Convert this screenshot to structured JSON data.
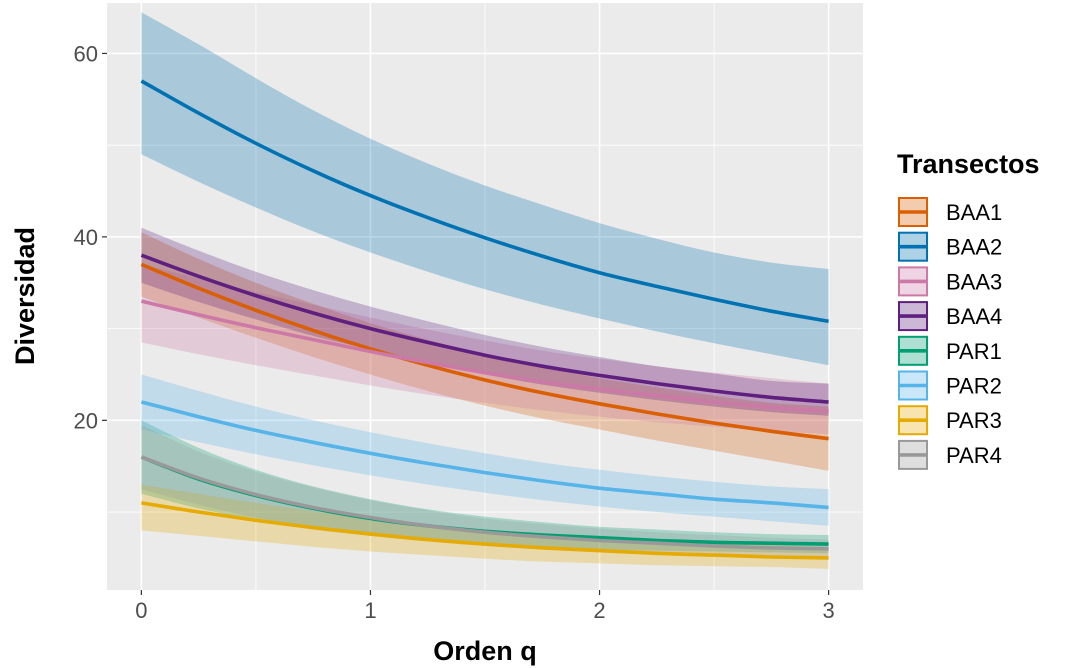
{
  "chart_data": {
    "type": "line",
    "xlabel": "Orden q",
    "ylabel": "Diversidad",
    "xlim": [
      -0.15,
      3.15
    ],
    "ylim": [
      1.5,
      65.5
    ],
    "xticks": [
      0,
      1,
      2,
      3
    ],
    "yticks": [
      20,
      40,
      60
    ],
    "x": [
      0,
      0.25,
      0.5,
      0.75,
      1,
      1.25,
      1.5,
      1.75,
      2,
      2.25,
      2.5,
      2.75,
      3
    ],
    "grid": true,
    "legend_position": "right",
    "legend_title": "Transectos",
    "series": [
      {
        "name": "BAA1",
        "color": "#D95F02",
        "line": [
          37,
          34.4,
          32,
          29.8,
          27.8,
          26,
          24.4,
          23,
          21.8,
          20.7,
          19.7,
          18.8,
          18
        ],
        "lower": [
          33.5,
          31.2,
          29,
          26.9,
          25,
          23.2,
          21.6,
          20.2,
          19,
          17.8,
          16.7,
          15.6,
          14.5
        ],
        "upper": [
          40.5,
          37.6,
          35,
          32.7,
          30.6,
          28.8,
          27.2,
          25.8,
          24.6,
          23.6,
          22.7,
          21.9,
          21.5
        ]
      },
      {
        "name": "BAA2",
        "color": "#0072B2",
        "line": [
          57,
          53.5,
          50.2,
          47.2,
          44.5,
          42.1,
          39.9,
          37.9,
          36.1,
          34.6,
          33.2,
          31.9,
          30.8
        ],
        "lower": [
          49,
          46,
          43.2,
          40.6,
          38.3,
          36.2,
          34.3,
          32.6,
          31.1,
          29.7,
          28.4,
          27.2,
          26
        ],
        "upper": [
          64.5,
          61,
          57.3,
          53.8,
          50.7,
          48,
          45.6,
          43.5,
          41.5,
          39.8,
          38.3,
          37.2,
          36.5
        ]
      },
      {
        "name": "BAA3",
        "color": "#CC79A7",
        "line": [
          33,
          31.5,
          30.1,
          28.8,
          27.5,
          26.3,
          25.2,
          24.2,
          23.4,
          22.7,
          22,
          21.4,
          21
        ],
        "lower": [
          28.5,
          27.2,
          26,
          24.9,
          23.8,
          22.8,
          21.9,
          21.1,
          20.4,
          19.8,
          19.3,
          18.8,
          18.5
        ],
        "upper": [
          37,
          35.5,
          34,
          32.6,
          31.2,
          29.9,
          28.7,
          27.6,
          26.7,
          25.9,
          25.2,
          24.6,
          24
        ]
      },
      {
        "name": "BAA4",
        "color": "#5E1F7F",
        "line": [
          38,
          35.7,
          33.6,
          31.7,
          30,
          28.5,
          27.1,
          25.9,
          24.9,
          24,
          23.2,
          22.5,
          22
        ],
        "lower": [
          35,
          32.9,
          31,
          29.2,
          27.7,
          26.3,
          25,
          23.9,
          23,
          22.2,
          21.5,
          20.9,
          20.5
        ],
        "upper": [
          41,
          38.5,
          36.2,
          34.2,
          32.4,
          30.8,
          29.3,
          28,
          26.9,
          25.9,
          25.1,
          24.3,
          24
        ]
      },
      {
        "name": "PAR1",
        "color": "#009E73",
        "line": [
          16,
          13.6,
          11.8,
          10.4,
          9.3,
          8.5,
          7.9,
          7.5,
          7.2,
          6.9,
          6.7,
          6.6,
          6.5
        ],
        "lower": [
          12,
          10.4,
          9.1,
          8.1,
          7.4,
          6.8,
          6.4,
          6.1,
          5.9,
          5.8,
          5.7,
          5.6,
          5.5
        ],
        "upper": [
          20,
          17,
          14.6,
          12.8,
          11.4,
          10.3,
          9.5,
          8.9,
          8.4,
          8.1,
          7.8,
          7.6,
          7.5
        ]
      },
      {
        "name": "PAR2",
        "color": "#56B4E9",
        "line": [
          22,
          20.4,
          18.9,
          17.6,
          16.4,
          15.3,
          14.3,
          13.4,
          12.6,
          12,
          11.4,
          11,
          10.5
        ],
        "lower": [
          19,
          17.6,
          16.3,
          15.1,
          14,
          13,
          12.1,
          11.3,
          10.6,
          10,
          9.5,
          9,
          8.5
        ],
        "upper": [
          25,
          23.2,
          21.5,
          20,
          18.7,
          17.5,
          16.4,
          15.4,
          14.6,
          13.9,
          13.3,
          12.8,
          12.5
        ]
      },
      {
        "name": "PAR3",
        "color": "#E6AB02",
        "line": [
          11,
          10,
          9.1,
          8.3,
          7.6,
          7,
          6.5,
          6.1,
          5.8,
          5.5,
          5.3,
          5.1,
          5
        ],
        "lower": [
          8,
          7.4,
          6.8,
          6.2,
          5.7,
          5.3,
          4.9,
          4.6,
          4.4,
          4.2,
          4.1,
          4,
          3.8
        ],
        "upper": [
          13,
          12,
          11,
          10.1,
          9.3,
          8.6,
          8,
          7.5,
          7.1,
          6.8,
          6.6,
          6.4,
          6.2
        ]
      },
      {
        "name": "PAR4",
        "color": "#999999",
        "line": [
          16,
          13.7,
          11.9,
          10.5,
          9.4,
          8.5,
          7.8,
          7.3,
          6.9,
          6.6,
          6.3,
          6.1,
          6
        ],
        "lower": [
          12.5,
          10.8,
          9.4,
          8.3,
          7.5,
          6.8,
          6.3,
          5.9,
          5.6,
          5.4,
          5.2,
          5.1,
          5
        ],
        "upper": [
          19.5,
          16.6,
          14.4,
          12.7,
          11.3,
          10.2,
          9.3,
          8.7,
          8.2,
          7.8,
          7.5,
          7.2,
          7
        ]
      }
    ]
  }
}
